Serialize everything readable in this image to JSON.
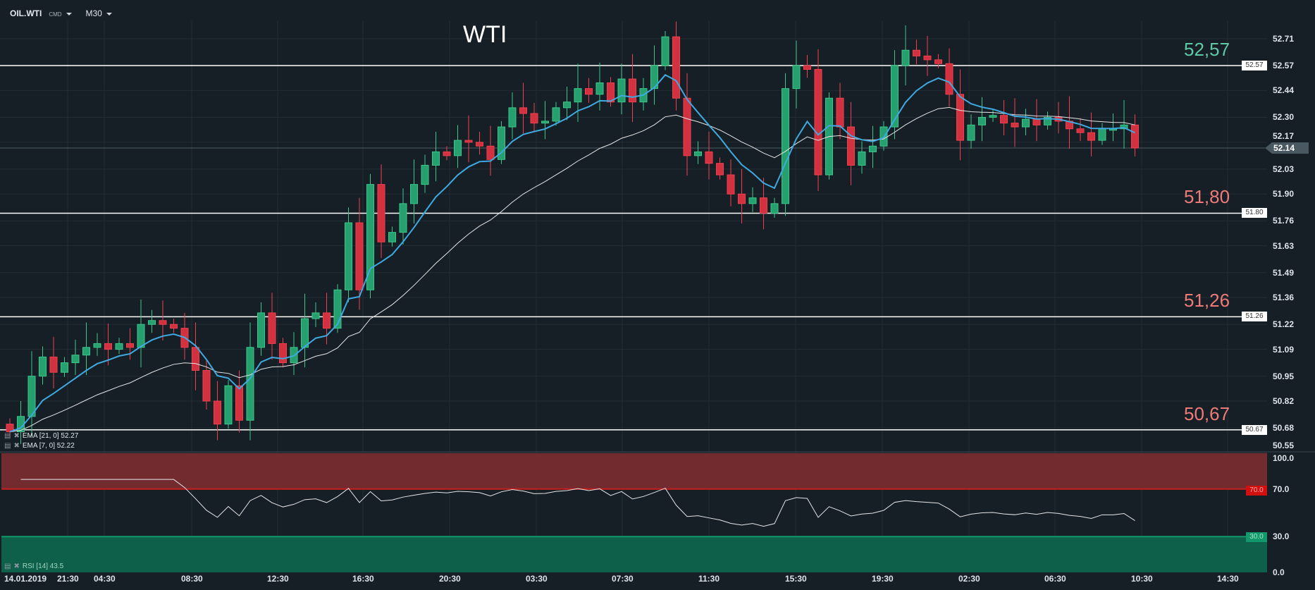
{
  "header": {
    "symbol": "OIL.WTI",
    "type": "CMD",
    "timeframe": "M30"
  },
  "title": "WTI",
  "levels": [
    {
      "value": 52.57,
      "label": "52,57",
      "box": "52.57",
      "color": "#5fc9a5"
    },
    {
      "value": 51.8,
      "label": "51,80",
      "box": "51.80",
      "color": "#ee7b78"
    },
    {
      "value": 51.26,
      "label": "51,26",
      "box": "51.26",
      "color": "#ee7b78"
    },
    {
      "value": 50.67,
      "label": "50,67",
      "box": "50.67",
      "color": "#ee7b78"
    }
  ],
  "current_price": {
    "value": 52.14,
    "label": "52.14"
  },
  "price_axis": [
    "52.71",
    "52.57",
    "52.44",
    "52.30",
    "52.17",
    "52.03",
    "51.90",
    "51.76",
    "51.63",
    "51.49",
    "51.36",
    "51.22",
    "51.09",
    "50.95",
    "50.82",
    "50.68",
    "50.55"
  ],
  "rsi_axis": [
    "100.0",
    "70.0",
    "30.0",
    "0.0"
  ],
  "rsi_levels": {
    "upper": "70.0",
    "lower": "30.0"
  },
  "legends": {
    "ema21": "EMA [21, 0] 52.27",
    "ema7": "EMA [7, 0] 52.22",
    "rsi": "RSI [14] 43.5"
  },
  "time_axis": [
    "14.01.2019",
    "21:30",
    "04:30",
    "08:30",
    "12:30",
    "16:30",
    "20:30",
    "03:30",
    "07:30",
    "11:30",
    "15:30",
    "19:30",
    "02:30",
    "06:30",
    "10:30",
    "14:30"
  ],
  "colors": {
    "up": "#26a06e",
    "down": "#d2313f",
    "ema7": "#3fa9e0",
    "ema21": "#e6e6e6",
    "bg": "#161f26"
  },
  "chart_data": {
    "type": "candlestick",
    "title": "WTI",
    "ylim": [
      50.55,
      52.75
    ],
    "open_first": 50.7,
    "closes": [
      50.66,
      50.74,
      50.95,
      51.05,
      50.97,
      51.02,
      51.06,
      51.1,
      51.12,
      51.09,
      51.12,
      51.1,
      51.22,
      51.24,
      51.22,
      51.2,
      51.1,
      50.98,
      50.82,
      50.7,
      50.9,
      50.72,
      51.1,
      51.28,
      51.12,
      51.02,
      51.1,
      51.25,
      51.28,
      51.2,
      51.4,
      51.75,
      51.4,
      51.95,
      51.65,
      51.7,
      51.85,
      51.95,
      52.05,
      52.12,
      52.1,
      52.18,
      52.17,
      52.15,
      52.08,
      52.25,
      52.35,
      52.32,
      52.27,
      52.28,
      52.35,
      52.38,
      52.45,
      52.42,
      52.48,
      52.38,
      52.5,
      52.38,
      52.45,
      52.57,
      52.72,
      52.4,
      52.1,
      52.12,
      52.06,
      52.0,
      51.9,
      51.85,
      51.88,
      51.8,
      51.85,
      52.45,
      52.57,
      52.55,
      52.0,
      52.4,
      52.25,
      52.05,
      52.12,
      52.15,
      52.25,
      52.57,
      52.65,
      52.62,
      52.6,
      52.58,
      52.42,
      52.18,
      52.26,
      52.3,
      52.31,
      52.27,
      52.25,
      52.29,
      52.26,
      52.3,
      52.28,
      52.24,
      52.22,
      52.18,
      52.24,
      52.24,
      52.26,
      52.14
    ]
  }
}
